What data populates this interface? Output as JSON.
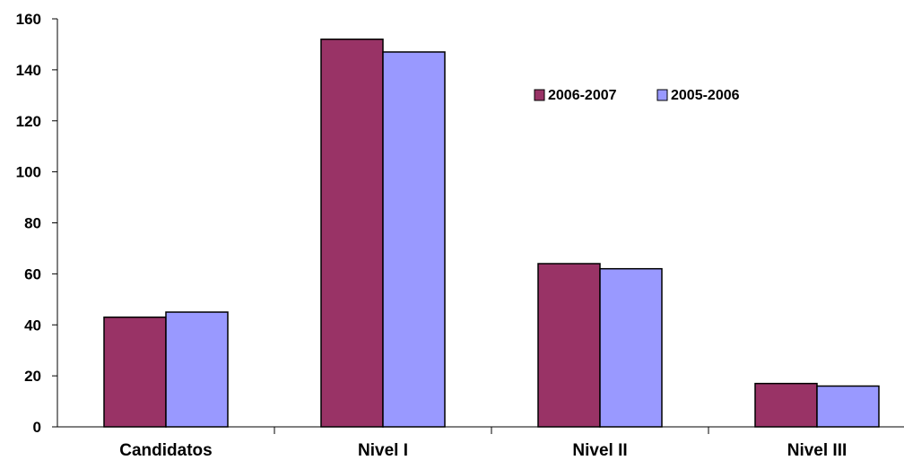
{
  "chart_data": {
    "type": "bar",
    "categories": [
      "Candidatos",
      "Nivel I",
      "Nivel II",
      "Nivel III"
    ],
    "series": [
      {
        "name": "2006-2007",
        "values": [
          43,
          152,
          64,
          17
        ],
        "color": "#993366"
      },
      {
        "name": "2005-2006",
        "values": [
          45,
          147,
          62,
          16
        ],
        "color": "#9999FF"
      }
    ],
    "ylim": [
      0,
      160
    ],
    "yticks": [
      "0",
      "20",
      "40",
      "60",
      "80",
      "100",
      "120",
      "140",
      "160"
    ],
    "title": "",
    "xlabel": "",
    "ylabel": "",
    "grid": false,
    "legend_position": "top-right",
    "bar_outline_color": "#000000"
  }
}
